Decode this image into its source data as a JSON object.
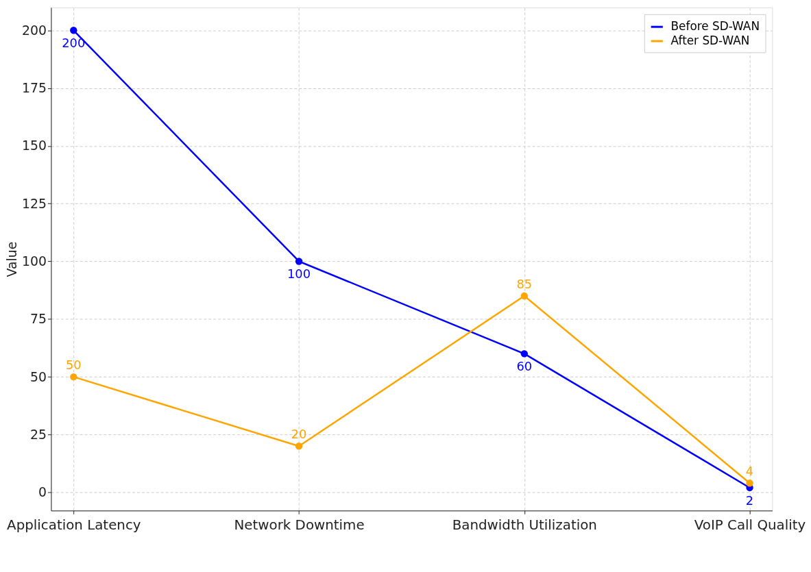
{
  "chart_data": {
    "type": "line",
    "categories": [
      "Application Latency",
      "Network Downtime",
      "Bandwidth Utilization",
      "VoIP Call Quality"
    ],
    "series": [
      {
        "name": "Before SD-WAN",
        "color": "#0000ff",
        "values": [
          200,
          100,
          60,
          2
        ]
      },
      {
        "name": "After SD-WAN",
        "color": "#ffa500",
        "values": [
          50,
          20,
          85,
          4
        ]
      }
    ],
    "ylabel": "Value",
    "ylim": [
      -7.9,
      209.9
    ],
    "yticks": [
      0,
      25,
      50,
      75,
      100,
      125,
      150,
      175,
      200
    ],
    "grid": true,
    "legend": "top right",
    "marker": "circle",
    "line_style": "solid",
    "data_labels": true
  }
}
